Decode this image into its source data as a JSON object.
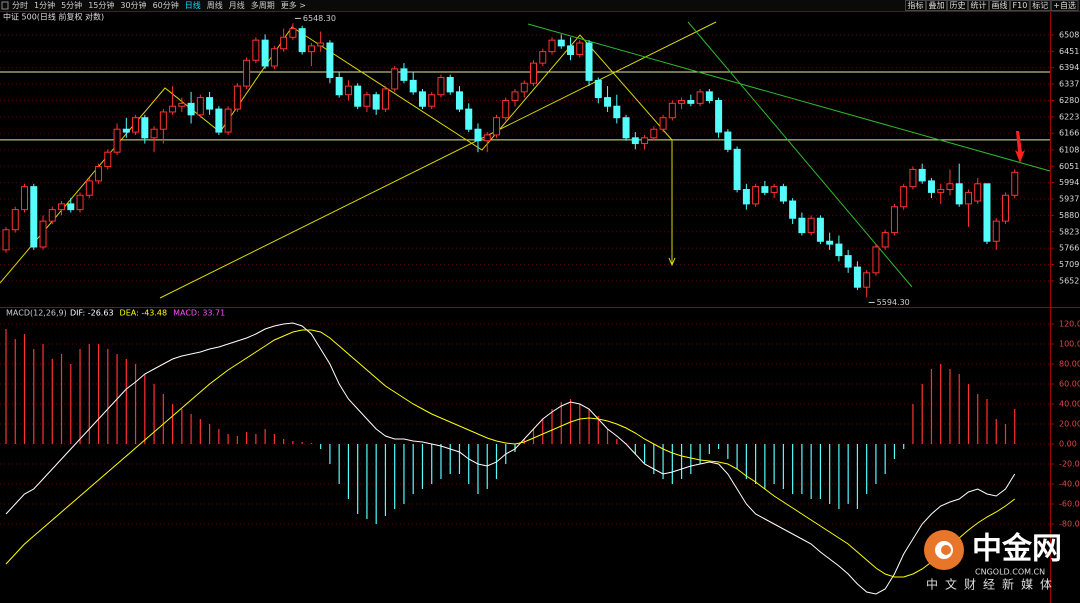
{
  "toolbar": {
    "tabs": [
      "分时",
      "1分钟",
      "5分钟",
      "15分钟",
      "30分钟",
      "60分钟",
      "日线",
      "周线",
      "月线",
      "多周期",
      "更多 >"
    ],
    "active_tab": 6,
    "buttons": [
      "指标",
      "叠加",
      "历史",
      "统计",
      "画线",
      "F10",
      "标记",
      "+自选"
    ]
  },
  "chart_data": [
    {
      "type": "candlestick",
      "title": "中证 500(日线 前复权 对数)",
      "up_color": "#ff3232",
      "down_color": "#54fcfc",
      "ylim": [
        5568,
        6588
      ],
      "yticks": [
        6508,
        6451,
        6394,
        6337,
        6280,
        6223,
        6166,
        6108,
        6051,
        5994,
        5937,
        5880,
        5823,
        5766,
        5709,
        5652
      ],
      "grid": true,
      "hlines": [
        6379,
        6143
      ],
      "annotations": [
        {
          "text": "6548.30",
          "value": 6548.3
        },
        {
          "text": "5594.30",
          "value": 5594.3
        }
      ],
      "open": [
        5760,
        5830,
        5900,
        5980,
        5770,
        5860,
        5900,
        5920,
        5900,
        5950,
        6000,
        6050,
        6100,
        6180,
        6170,
        6220,
        6150,
        6180,
        6240,
        6260,
        6270,
        6230,
        6290,
        6250,
        6170,
        6250,
        6330,
        6420,
        6490,
        6400,
        6460,
        6500,
        6530,
        6450,
        6470,
        6480,
        6360,
        6300,
        6330,
        6260,
        6300,
        6250,
        6320,
        6390,
        6350,
        6310,
        6260,
        6300,
        6360,
        6310,
        6250,
        6180,
        6140,
        6160,
        6220,
        6280,
        6310,
        6340,
        6410,
        6450,
        6490,
        6470,
        6440,
        6480,
        6350,
        6290,
        6260,
        6220,
        6150,
        6130,
        6150,
        6180,
        6220,
        6270,
        6280,
        6270,
        6310,
        6280,
        6170,
        6110,
        5970,
        5920,
        5980,
        5960,
        5980,
        5930,
        5870,
        5820,
        5870,
        5790,
        5780,
        5740,
        5700,
        5630,
        5680,
        5770,
        5820,
        5910,
        5980,
        6040,
        6000,
        5960,
        5970,
        5990,
        5920,
        5930,
        5990,
        5790,
        5860,
        5950
      ],
      "high": [
        5840,
        5910,
        5990,
        5990,
        5880,
        5910,
        5930,
        5940,
        5960,
        6010,
        6060,
        6110,
        6200,
        6220,
        6230,
        6230,
        6190,
        6250,
        6330,
        6290,
        6310,
        6300,
        6310,
        6260,
        6260,
        6340,
        6430,
        6500,
        6510,
        6470,
        6530,
        6548.3,
        6540,
        6480,
        6520,
        6490,
        6380,
        6350,
        6340,
        6310,
        6310,
        6330,
        6400,
        6410,
        6380,
        6320,
        6310,
        6370,
        6370,
        6330,
        6270,
        6200,
        6170,
        6230,
        6290,
        6320,
        6350,
        6420,
        6460,
        6500,
        6510,
        6500,
        6490,
        6490,
        6360,
        6330,
        6300,
        6230,
        6170,
        6160,
        6190,
        6230,
        6280,
        6290,
        6300,
        6320,
        6320,
        6290,
        6180,
        6120,
        5990,
        5990,
        6000,
        5990,
        5990,
        5940,
        5890,
        5880,
        5880,
        5820,
        5810,
        5760,
        5720,
        5690,
        5780,
        5830,
        5920,
        5990,
        6050,
        6060,
        6010,
        5990,
        6040,
        6060,
        5970,
        6010,
        5990,
        5870,
        5960,
        6040
      ],
      "low": [
        5750,
        5820,
        5890,
        5760,
        5760,
        5850,
        5880,
        5890,
        5890,
        5940,
        5990,
        6040,
        6090,
        6150,
        6160,
        6130,
        6100,
        6130,
        6230,
        6240,
        6200,
        6220,
        6230,
        6160,
        6160,
        6240,
        6320,
        6410,
        6390,
        6390,
        6450,
        6490,
        6440,
        6400,
        6450,
        6340,
        6290,
        6280,
        6250,
        6240,
        6230,
        6240,
        6310,
        6340,
        6300,
        6250,
        6250,
        6290,
        6300,
        6240,
        6170,
        6100,
        6100,
        6150,
        6210,
        6260,
        6290,
        6330,
        6400,
        6440,
        6460,
        6420,
        6430,
        6330,
        6270,
        6240,
        6200,
        6140,
        6110,
        6110,
        6140,
        6170,
        6210,
        6250,
        6260,
        6260,
        6270,
        6150,
        6100,
        5960,
        5900,
        5910,
        5950,
        5940,
        5920,
        5850,
        5810,
        5810,
        5780,
        5760,
        5720,
        5680,
        5620,
        5594.3,
        5670,
        5760,
        5810,
        5900,
        5970,
        5990,
        5940,
        5920,
        5950,
        5910,
        5840,
        5920,
        5780,
        5760,
        5850,
        5940
      ],
      "close": [
        5830,
        5900,
        5980,
        5770,
        5860,
        5900,
        5920,
        5900,
        5950,
        6000,
        6050,
        6100,
        6180,
        6170,
        6220,
        6150,
        6180,
        6240,
        6260,
        6270,
        6230,
        6290,
        6250,
        6170,
        6250,
        6330,
        6420,
        6490,
        6400,
        6460,
        6500,
        6530,
        6450,
        6470,
        6480,
        6360,
        6300,
        6330,
        6260,
        6300,
        6250,
        6320,
        6390,
        6350,
        6310,
        6260,
        6300,
        6360,
        6310,
        6250,
        6180,
        6140,
        6160,
        6220,
        6280,
        6310,
        6340,
        6410,
        6450,
        6490,
        6470,
        6440,
        6480,
        6350,
        6290,
        6260,
        6220,
        6150,
        6130,
        6150,
        6180,
        6220,
        6270,
        6280,
        6270,
        6310,
        6280,
        6170,
        6110,
        5970,
        5920,
        5980,
        5960,
        5980,
        5930,
        5870,
        5820,
        5870,
        5790,
        5780,
        5740,
        5700,
        5630,
        5680,
        5770,
        5820,
        5910,
        5980,
        6040,
        6000,
        5960,
        5970,
        5990,
        5920,
        5960,
        5990,
        5790,
        5860,
        5950,
        6030
      ]
    },
    {
      "type": "macd",
      "title": "MACD(12,26,9)",
      "ylim": [
        -159,
        134
      ],
      "yticks": [
        {
          "value": 120,
          "label": "120.00"
        },
        {
          "value": 100,
          "label": "100.00"
        },
        {
          "value": 80,
          "label": "80.00"
        },
        {
          "value": 60,
          "label": "60.00"
        },
        {
          "value": 40,
          "label": "40.00"
        },
        {
          "value": 20,
          "label": "20.00"
        },
        {
          "value": 0,
          "label": "0.00"
        },
        {
          "value": -20,
          "label": "-20.00"
        },
        {
          "value": -40,
          "label": "-40.00"
        },
        {
          "value": -60,
          "label": "-60.00"
        },
        {
          "value": -80,
          "label": "-80.00"
        }
      ],
      "grid": true,
      "histogram": {
        "name": "MACD: 33.71",
        "color": "#ff4fff",
        "up_color": "#ff3232",
        "down_color": "#54fcfc",
        "values": [
          115,
          105,
          110,
          95,
          100,
          85,
          90,
          80,
          95,
          100,
          100,
          95,
          90,
          85,
          80,
          70,
          60,
          50,
          40,
          35,
          30,
          25,
          20,
          15,
          10,
          8,
          12,
          10,
          15,
          10,
          5,
          3,
          2,
          1,
          -5,
          -20,
          -40,
          -55,
          -70,
          -75,
          -80,
          -72,
          -65,
          -60,
          -50,
          -45,
          -40,
          -35,
          -30,
          -30,
          -40,
          -50,
          -45,
          -35,
          -20,
          -8,
          5,
          15,
          25,
          35,
          42,
          45,
          40,
          35,
          28,
          15,
          5,
          1,
          -10,
          -20,
          -30,
          -35,
          -40,
          -35,
          -30,
          -20,
          -10,
          -5,
          -15,
          -25,
          -35,
          -40,
          -45,
          -40,
          -45,
          -50,
          -50,
          -55,
          -55,
          -60,
          -65,
          -60,
          -65,
          -50,
          -40,
          -30,
          -15,
          -5,
          40,
          60,
          75,
          80,
          75,
          70,
          60,
          50,
          45,
          25,
          20,
          35
        ]
      },
      "series": [
        {
          "name": "DIF: -26.63",
          "color": "#ffffff",
          "values": [
            -70,
            -60,
            -50,
            -45,
            -35,
            -25,
            -15,
            -5,
            5,
            15,
            25,
            35,
            45,
            55,
            62,
            70,
            75,
            80,
            85,
            88,
            90,
            92,
            95,
            97,
            100,
            103,
            106,
            110,
            115,
            118,
            120,
            121,
            118,
            110,
            95,
            80,
            60,
            45,
            35,
            25,
            15,
            8,
            5,
            5,
            3,
            2,
            0,
            -2,
            -5,
            -8,
            -15,
            -20,
            -22,
            -18,
            -10,
            -5,
            5,
            15,
            25,
            32,
            38,
            42,
            40,
            35,
            25,
            15,
            8,
            0,
            -10,
            -20,
            -25,
            -30,
            -28,
            -25,
            -22,
            -20,
            -18,
            -20,
            -30,
            -45,
            -60,
            -70,
            -75,
            -80,
            -85,
            -90,
            -95,
            -100,
            -108,
            -115,
            -122,
            -130,
            -140,
            -148,
            -150,
            -145,
            -130,
            -110,
            -95,
            -80,
            -70,
            -62,
            -58,
            -55,
            -48,
            -45,
            -50,
            -52,
            -45,
            -30
          ]
        },
        {
          "name": "DEA: -43.48",
          "color": "#ffff00",
          "values": [
            -120,
            -110,
            -100,
            -92,
            -84,
            -76,
            -68,
            -60,
            -52,
            -44,
            -36,
            -28,
            -20,
            -12,
            -4,
            4,
            12,
            20,
            28,
            36,
            44,
            52,
            60,
            67,
            74,
            80,
            86,
            92,
            98,
            104,
            108,
            112,
            114,
            114,
            112,
            106,
            98,
            90,
            82,
            74,
            66,
            58,
            52,
            46,
            40,
            35,
            30,
            26,
            22,
            18,
            14,
            10,
            6,
            3,
            1,
            0,
            2,
            6,
            10,
            14,
            18,
            22,
            25,
            26,
            25,
            23,
            20,
            16,
            11,
            5,
            0,
            -5,
            -9,
            -12,
            -14,
            -16,
            -17,
            -18,
            -20,
            -25,
            -32,
            -38,
            -45,
            -52,
            -58,
            -64,
            -70,
            -76,
            -82,
            -88,
            -94,
            -100,
            -108,
            -116,
            -124,
            -130,
            -133,
            -133,
            -130,
            -125,
            -118,
            -110,
            -102,
            -94,
            -86,
            -79,
            -73,
            -68,
            -62,
            -55
          ]
        }
      ]
    }
  ],
  "logo": {
    "name": "中金网",
    "domain": "CNGOLD.COM.CN",
    "tagline": "中文财经新媒体"
  }
}
